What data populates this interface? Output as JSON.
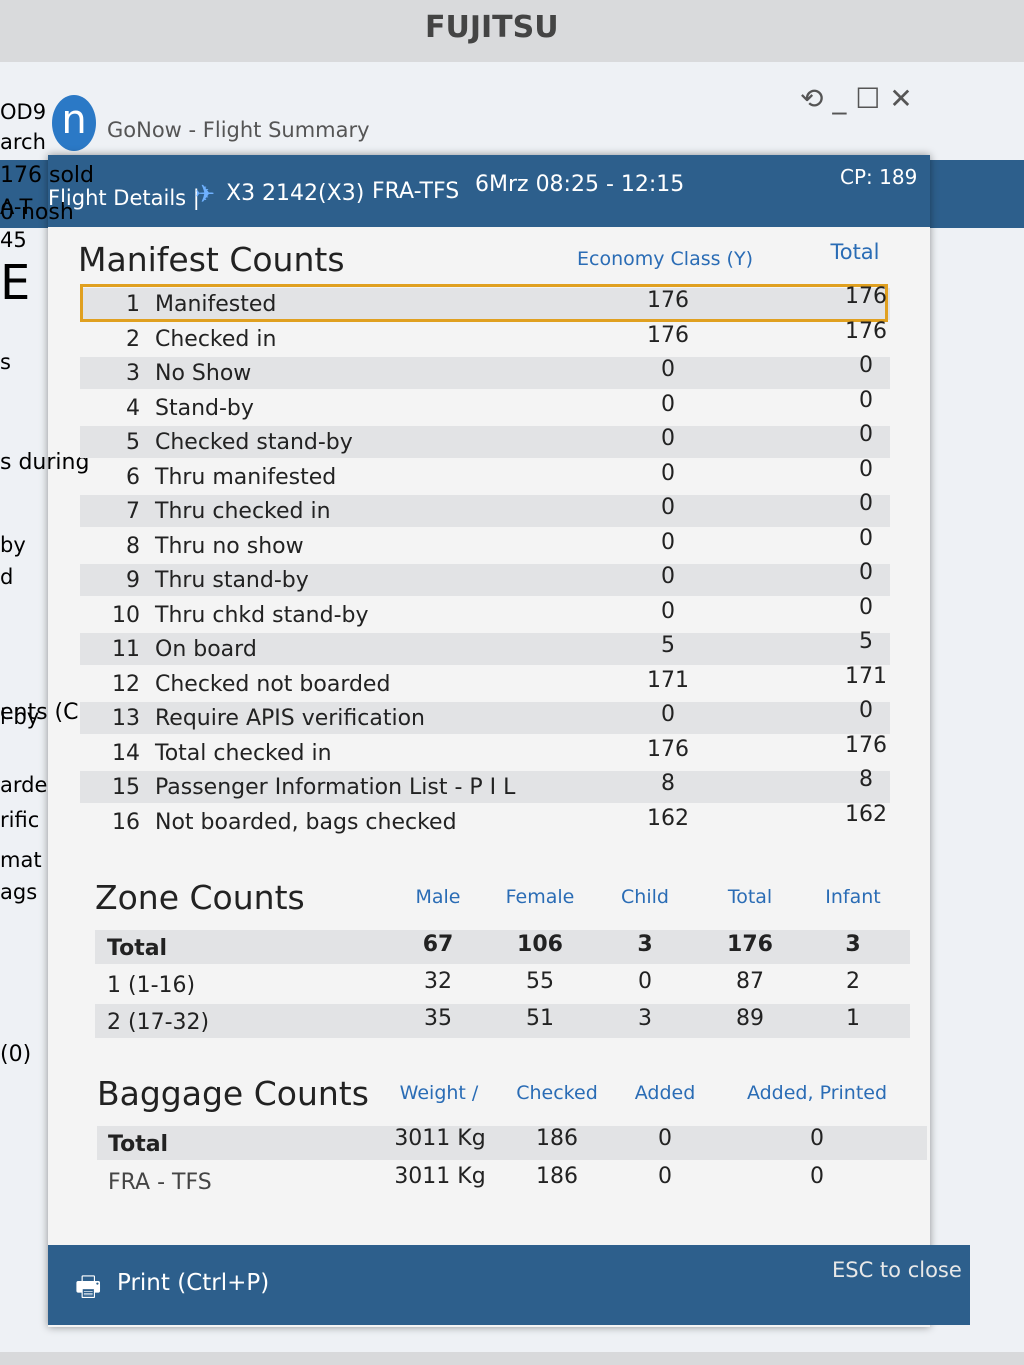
{
  "brand": "FUJITSU",
  "window": {
    "title": "GoNow - Flight Summary",
    "app_icon": "n"
  },
  "background": {
    "left": [
      "OD9",
      "arch",
      "A-T",
      "45",
      "E",
      "s",
      "by",
      "d",
      "l-by",
      "arde",
      "rific",
      "mat",
      "ags"
    ],
    "right": [
      "176 sold",
      "0 nosh",
      "s during",
      "ents (C",
      "(0)"
    ]
  },
  "header": {
    "label": "Flight Details |",
    "flight": "X3 2142(X3)",
    "route": "FRA-TFS",
    "time": "6Mrz 08:25 - 12:15",
    "cp": "CP: 189"
  },
  "manifest": {
    "title": "Manifest Counts",
    "columns": [
      "Economy Class (Y)",
      "Total"
    ],
    "rows": [
      [
        1,
        "Manifested",
        176,
        176
      ],
      [
        2,
        "Checked in",
        176,
        176
      ],
      [
        3,
        "No Show",
        0,
        0
      ],
      [
        4,
        "Stand-by",
        0,
        0
      ],
      [
        5,
        "Checked stand-by",
        0,
        0
      ],
      [
        6,
        "Thru manifested",
        0,
        0
      ],
      [
        7,
        "Thru checked in",
        0,
        0
      ],
      [
        8,
        "Thru no show",
        0,
        0
      ],
      [
        9,
        "Thru stand-by",
        0,
        0
      ],
      [
        10,
        "Thru chkd stand-by",
        0,
        0
      ],
      [
        11,
        "On board",
        5,
        5
      ],
      [
        12,
        "Checked not boarded",
        171,
        171
      ],
      [
        13,
        "Require APIS verification",
        0,
        0
      ],
      [
        14,
        "Total checked in",
        176,
        176
      ],
      [
        15,
        "Passenger Information List - P I L",
        8,
        8
      ],
      [
        16,
        "Not boarded, bags checked",
        162,
        162
      ]
    ]
  },
  "zones": {
    "title": "Zone Counts",
    "columns": [
      "Male",
      "Female",
      "Child",
      "Total",
      "Infant"
    ],
    "rows": [
      [
        "Total",
        67,
        106,
        3,
        176,
        3
      ],
      [
        "1 (1-16)",
        32,
        55,
        0,
        87,
        2
      ],
      [
        "2 (17-32)",
        35,
        51,
        3,
        89,
        1
      ]
    ]
  },
  "baggage": {
    "title": "Baggage Counts",
    "columns": [
      "Weight /",
      "Checked",
      "Added",
      "Added, Printed"
    ],
    "rows": [
      [
        "Total",
        "3011 Kg",
        186,
        0,
        0
      ],
      [
        "FRA - TFS",
        "3011 Kg",
        186,
        0,
        0
      ]
    ]
  },
  "footer": {
    "print": "Print (Ctrl+P)",
    "close": "ESC to close"
  }
}
